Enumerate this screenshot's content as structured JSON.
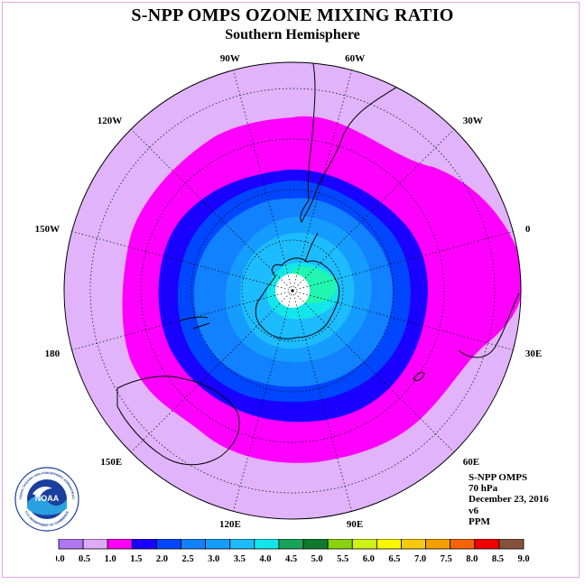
{
  "title": "S-NPP OMPS OZONE MIXING RATIO",
  "subtitle": "Southern Hemisphere",
  "longitude_labels": [
    {
      "text": "90W",
      "lon": -90
    },
    {
      "text": "60W",
      "lon": -60
    },
    {
      "text": "30W",
      "lon": -30
    },
    {
      "text": "0",
      "lon": 0
    },
    {
      "text": "30E",
      "lon": 30
    },
    {
      "text": "60E",
      "lon": 60
    },
    {
      "text": "90E",
      "lon": 90
    },
    {
      "text": "120E",
      "lon": 120
    },
    {
      "text": "150E",
      "lon": 150
    },
    {
      "text": "180",
      "lon": 180
    },
    {
      "text": "150W",
      "lon": -150
    },
    {
      "text": "120W",
      "lon": -120
    }
  ],
  "info": {
    "instrument": "S-NPP OMPS",
    "level": "70 hPa",
    "date": "December 23, 2016",
    "version": "v6",
    "units": "PPM"
  },
  "logo": {
    "text": "NOAA",
    "ring_text": "NATIONAL OCEANIC AND ATMOSPHERIC ADMINISTRATION",
    "bottom_text": "U.S. DEPARTMENT OF COMMERCE"
  },
  "colorbar": {
    "ticks": [
      "0.0",
      "0.5",
      "1.0",
      "1.5",
      "2.0",
      "2.5",
      "3.0",
      "3.5",
      "4.0",
      "4.5",
      "5.0",
      "5.5",
      "6.0",
      "6.5",
      "7.0",
      "7.5",
      "8.0",
      "8.5",
      "9.0"
    ],
    "colors": [
      "#b077f0",
      "#dfaaf8",
      "#ff00f8",
      "#1a00ff",
      "#0046ff",
      "#1181ff",
      "#159cff",
      "#1cbcff",
      "#13e6ea",
      "#16a35a",
      "#0f7a2c",
      "#88d20f",
      "#cff116",
      "#f8f800",
      "#f6cb0e",
      "#f5a000",
      "#f56407",
      "#f00000",
      "#86533a"
    ]
  },
  "map_colors": {
    "background": "#e0b3fb",
    "outer_band": "#ff00ff",
    "band2": "#0000ff",
    "band3": "#0a5cff",
    "band4": "#1c8eff",
    "band5": "#1eb4ff",
    "band6": "#1ecfff",
    "band7": "#1fe6ff",
    "band8": "#1ff5c0",
    "pole": "#ffffff"
  }
}
